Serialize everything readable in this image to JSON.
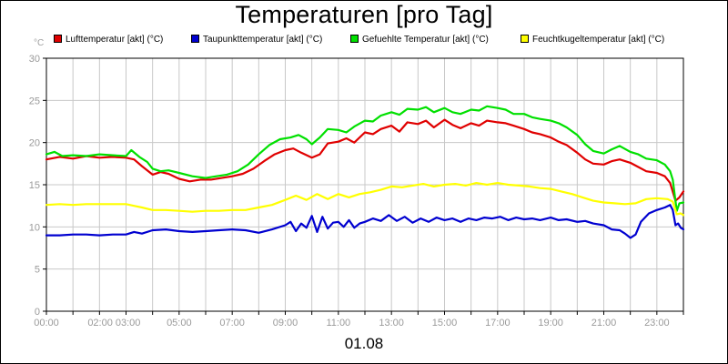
{
  "chart_data": {
    "type": "line",
    "title": "Temperaturen [pro Tag]",
    "unit_label": "°C",
    "xlabel": "01.08",
    "x_range_hours": [
      0,
      24
    ],
    "ylim": [
      0,
      30
    ],
    "y_ticks": [
      0,
      5,
      10,
      15,
      20,
      25,
      30
    ],
    "x_tick_labels": [
      {
        "hour": 0,
        "label": "00:00"
      },
      {
        "hour": 2.55,
        "label": "02:00 03:00"
      },
      {
        "hour": 5,
        "label": "05:00"
      },
      {
        "hour": 7,
        "label": "07:00"
      },
      {
        "hour": 9,
        "label": "09:00"
      },
      {
        "hour": 11,
        "label": "11:00"
      },
      {
        "hour": 13,
        "label": "13:00"
      },
      {
        "hour": 15,
        "label": "15:00"
      },
      {
        "hour": 17,
        "label": "17:00"
      },
      {
        "hour": 19,
        "label": "19:00"
      },
      {
        "hour": 21,
        "label": "21:00"
      },
      {
        "hour": 23,
        "label": "23:00"
      }
    ],
    "grid_hours": [
      0,
      1,
      2,
      3,
      4,
      5,
      6,
      7,
      8,
      9,
      10,
      11,
      12,
      13,
      14,
      15,
      16,
      17,
      18,
      19,
      20,
      21,
      22,
      23,
      24
    ],
    "grid": true,
    "legend_position": "top",
    "series": [
      {
        "name": "Lufttemperatur [akt] (°C)",
        "color": "#e00000",
        "points": [
          [
            0,
            18.0
          ],
          [
            0.5,
            18.3
          ],
          [
            1,
            18.1
          ],
          [
            1.5,
            18.4
          ],
          [
            2,
            18.2
          ],
          [
            2.5,
            18.3
          ],
          [
            3,
            18.2
          ],
          [
            3.3,
            18.0
          ],
          [
            3.6,
            17.2
          ],
          [
            4,
            16.2
          ],
          [
            4.3,
            16.5
          ],
          [
            4.6,
            16.3
          ],
          [
            5,
            15.7
          ],
          [
            5.4,
            15.4
          ],
          [
            5.8,
            15.6
          ],
          [
            6.2,
            15.6
          ],
          [
            6.6,
            15.8
          ],
          [
            7,
            16.0
          ],
          [
            7.4,
            16.3
          ],
          [
            7.8,
            16.9
          ],
          [
            8.2,
            17.8
          ],
          [
            8.6,
            18.6
          ],
          [
            9,
            19.1
          ],
          [
            9.3,
            19.3
          ],
          [
            9.6,
            18.8
          ],
          [
            10,
            18.2
          ],
          [
            10.3,
            18.6
          ],
          [
            10.6,
            19.9
          ],
          [
            11,
            20.1
          ],
          [
            11.3,
            20.5
          ],
          [
            11.6,
            20.0
          ],
          [
            12,
            21.2
          ],
          [
            12.3,
            21.0
          ],
          [
            12.6,
            21.6
          ],
          [
            13,
            22.0
          ],
          [
            13.3,
            21.3
          ],
          [
            13.6,
            22.4
          ],
          [
            14,
            22.2
          ],
          [
            14.3,
            22.6
          ],
          [
            14.6,
            21.8
          ],
          [
            15,
            22.7
          ],
          [
            15.3,
            22.1
          ],
          [
            15.6,
            21.7
          ],
          [
            16,
            22.3
          ],
          [
            16.3,
            22.0
          ],
          [
            16.6,
            22.6
          ],
          [
            17,
            22.4
          ],
          [
            17.3,
            22.3
          ],
          [
            17.6,
            22.0
          ],
          [
            18,
            21.6
          ],
          [
            18.3,
            21.2
          ],
          [
            18.6,
            21.0
          ],
          [
            19,
            20.6
          ],
          [
            19.3,
            20.1
          ],
          [
            19.6,
            19.7
          ],
          [
            20,
            18.8
          ],
          [
            20.3,
            18.0
          ],
          [
            20.6,
            17.5
          ],
          [
            21,
            17.4
          ],
          [
            21.3,
            17.8
          ],
          [
            21.6,
            18.0
          ],
          [
            22,
            17.6
          ],
          [
            22.3,
            17.1
          ],
          [
            22.6,
            16.6
          ],
          [
            23,
            16.4
          ],
          [
            23.3,
            16.0
          ],
          [
            23.5,
            15.2
          ],
          [
            23.7,
            13.1
          ],
          [
            23.85,
            13.5
          ],
          [
            24,
            14.2
          ]
        ]
      },
      {
        "name": "Taupunkttemperatur [akt] (°C)",
        "color": "#0000d0",
        "points": [
          [
            0,
            9.0
          ],
          [
            0.5,
            9.0
          ],
          [
            1,
            9.1
          ],
          [
            1.5,
            9.1
          ],
          [
            2,
            9.0
          ],
          [
            2.5,
            9.1
          ],
          [
            3,
            9.1
          ],
          [
            3.3,
            9.4
          ],
          [
            3.6,
            9.2
          ],
          [
            4,
            9.6
          ],
          [
            4.5,
            9.7
          ],
          [
            5,
            9.5
          ],
          [
            5.5,
            9.4
          ],
          [
            6,
            9.5
          ],
          [
            6.5,
            9.6
          ],
          [
            7,
            9.7
          ],
          [
            7.5,
            9.6
          ],
          [
            8,
            9.3
          ],
          [
            8.5,
            9.7
          ],
          [
            9,
            10.2
          ],
          [
            9.2,
            10.6
          ],
          [
            9.4,
            9.5
          ],
          [
            9.6,
            10.4
          ],
          [
            9.8,
            9.9
          ],
          [
            10,
            11.3
          ],
          [
            10.2,
            9.4
          ],
          [
            10.4,
            11.2
          ],
          [
            10.6,
            9.8
          ],
          [
            10.8,
            10.5
          ],
          [
            11,
            10.6
          ],
          [
            11.2,
            10.0
          ],
          [
            11.4,
            10.8
          ],
          [
            11.6,
            9.9
          ],
          [
            11.8,
            10.4
          ],
          [
            12,
            10.6
          ],
          [
            12.3,
            11.0
          ],
          [
            12.6,
            10.7
          ],
          [
            12.9,
            11.4
          ],
          [
            13.2,
            10.7
          ],
          [
            13.5,
            11.2
          ],
          [
            13.8,
            10.5
          ],
          [
            14.1,
            11.0
          ],
          [
            14.4,
            10.6
          ],
          [
            14.7,
            11.1
          ],
          [
            15,
            10.8
          ],
          [
            15.3,
            11.0
          ],
          [
            15.6,
            10.6
          ],
          [
            15.9,
            11.0
          ],
          [
            16.2,
            10.8
          ],
          [
            16.5,
            11.1
          ],
          [
            16.8,
            11.0
          ],
          [
            17.1,
            11.2
          ],
          [
            17.4,
            10.8
          ],
          [
            17.7,
            11.1
          ],
          [
            18,
            10.9
          ],
          [
            18.3,
            11.0
          ],
          [
            18.6,
            10.8
          ],
          [
            19,
            11.1
          ],
          [
            19.3,
            10.8
          ],
          [
            19.6,
            10.9
          ],
          [
            20,
            10.6
          ],
          [
            20.3,
            10.7
          ],
          [
            20.6,
            10.4
          ],
          [
            21,
            10.2
          ],
          [
            21.3,
            9.7
          ],
          [
            21.6,
            9.6
          ],
          [
            21.8,
            9.2
          ],
          [
            22,
            8.7
          ],
          [
            22.2,
            9.1
          ],
          [
            22.4,
            10.6
          ],
          [
            22.7,
            11.6
          ],
          [
            23,
            12.0
          ],
          [
            23.3,
            12.3
          ],
          [
            23.5,
            12.6
          ],
          [
            23.6,
            12.0
          ],
          [
            23.7,
            10.2
          ],
          [
            23.8,
            10.4
          ],
          [
            23.9,
            9.9
          ],
          [
            24,
            9.7
          ]
        ]
      },
      {
        "name": "Gefuehlte Temperatur [akt] (°C)",
        "color": "#00e000",
        "points": [
          [
            0,
            18.6
          ],
          [
            0.3,
            18.9
          ],
          [
            0.6,
            18.4
          ],
          [
            1,
            18.5
          ],
          [
            1.5,
            18.4
          ],
          [
            2,
            18.6
          ],
          [
            2.5,
            18.5
          ],
          [
            3,
            18.4
          ],
          [
            3.2,
            19.1
          ],
          [
            3.5,
            18.3
          ],
          [
            3.8,
            17.7
          ],
          [
            4,
            16.9
          ],
          [
            4.3,
            16.6
          ],
          [
            4.6,
            16.7
          ],
          [
            5,
            16.4
          ],
          [
            5.5,
            16.0
          ],
          [
            6,
            15.8
          ],
          [
            6.4,
            16.0
          ],
          [
            6.8,
            16.2
          ],
          [
            7.2,
            16.6
          ],
          [
            7.6,
            17.4
          ],
          [
            8,
            18.6
          ],
          [
            8.4,
            19.7
          ],
          [
            8.8,
            20.4
          ],
          [
            9.2,
            20.6
          ],
          [
            9.5,
            20.9
          ],
          [
            9.8,
            20.4
          ],
          [
            10,
            19.8
          ],
          [
            10.3,
            20.6
          ],
          [
            10.6,
            21.6
          ],
          [
            11,
            21.5
          ],
          [
            11.3,
            21.2
          ],
          [
            11.6,
            21.9
          ],
          [
            12,
            22.6
          ],
          [
            12.3,
            22.5
          ],
          [
            12.6,
            23.2
          ],
          [
            13,
            23.6
          ],
          [
            13.3,
            23.3
          ],
          [
            13.6,
            24.0
          ],
          [
            14,
            23.9
          ],
          [
            14.3,
            24.2
          ],
          [
            14.6,
            23.6
          ],
          [
            15,
            24.1
          ],
          [
            15.3,
            23.6
          ],
          [
            15.6,
            23.4
          ],
          [
            16,
            23.9
          ],
          [
            16.3,
            23.8
          ],
          [
            16.6,
            24.3
          ],
          [
            17,
            24.1
          ],
          [
            17.3,
            23.9
          ],
          [
            17.6,
            23.4
          ],
          [
            18,
            23.4
          ],
          [
            18.3,
            23.0
          ],
          [
            18.6,
            22.8
          ],
          [
            19,
            22.6
          ],
          [
            19.3,
            22.3
          ],
          [
            19.6,
            21.8
          ],
          [
            20,
            20.9
          ],
          [
            20.3,
            19.8
          ],
          [
            20.6,
            19.0
          ],
          [
            21,
            18.7
          ],
          [
            21.3,
            19.2
          ],
          [
            21.6,
            19.6
          ],
          [
            22,
            18.9
          ],
          [
            22.3,
            18.6
          ],
          [
            22.6,
            18.1
          ],
          [
            23,
            17.9
          ],
          [
            23.3,
            17.4
          ],
          [
            23.5,
            16.6
          ],
          [
            23.6,
            15.6
          ],
          [
            23.75,
            11.9
          ],
          [
            23.85,
            12.8
          ],
          [
            24,
            12.9
          ]
        ]
      },
      {
        "name": "Feuchtkugeltemperatur [akt] (°C)",
        "color": "#ffff00",
        "points": [
          [
            0,
            12.6
          ],
          [
            0.5,
            12.7
          ],
          [
            1,
            12.6
          ],
          [
            1.5,
            12.7
          ],
          [
            2,
            12.7
          ],
          [
            2.5,
            12.7
          ],
          [
            3,
            12.7
          ],
          [
            3.3,
            12.5
          ],
          [
            3.6,
            12.3
          ],
          [
            4,
            12.0
          ],
          [
            4.5,
            12.0
          ],
          [
            5,
            11.9
          ],
          [
            5.5,
            11.8
          ],
          [
            6,
            11.9
          ],
          [
            6.5,
            11.9
          ],
          [
            7,
            12.0
          ],
          [
            7.5,
            12.0
          ],
          [
            8,
            12.3
          ],
          [
            8.5,
            12.6
          ],
          [
            9,
            13.2
          ],
          [
            9.4,
            13.7
          ],
          [
            9.8,
            13.2
          ],
          [
            10.2,
            13.9
          ],
          [
            10.6,
            13.3
          ],
          [
            11,
            13.9
          ],
          [
            11.4,
            13.5
          ],
          [
            11.8,
            13.9
          ],
          [
            12.2,
            14.1
          ],
          [
            12.6,
            14.4
          ],
          [
            13,
            14.8
          ],
          [
            13.4,
            14.7
          ],
          [
            13.8,
            14.9
          ],
          [
            14.2,
            15.1
          ],
          [
            14.6,
            14.8
          ],
          [
            15,
            15.0
          ],
          [
            15.4,
            15.1
          ],
          [
            15.8,
            14.9
          ],
          [
            16.2,
            15.2
          ],
          [
            16.6,
            15.0
          ],
          [
            17,
            15.2
          ],
          [
            17.4,
            15.0
          ],
          [
            17.8,
            14.9
          ],
          [
            18.2,
            14.8
          ],
          [
            18.6,
            14.6
          ],
          [
            19,
            14.5
          ],
          [
            19.4,
            14.2
          ],
          [
            19.8,
            13.9
          ],
          [
            20.2,
            13.5
          ],
          [
            20.6,
            13.1
          ],
          [
            21,
            12.9
          ],
          [
            21.4,
            12.8
          ],
          [
            21.8,
            12.7
          ],
          [
            22.2,
            12.8
          ],
          [
            22.6,
            13.3
          ],
          [
            23,
            13.4
          ],
          [
            23.4,
            13.3
          ],
          [
            23.6,
            13.0
          ],
          [
            23.75,
            11.5
          ],
          [
            23.9,
            11.6
          ],
          [
            24,
            11.4
          ]
        ]
      }
    ]
  }
}
